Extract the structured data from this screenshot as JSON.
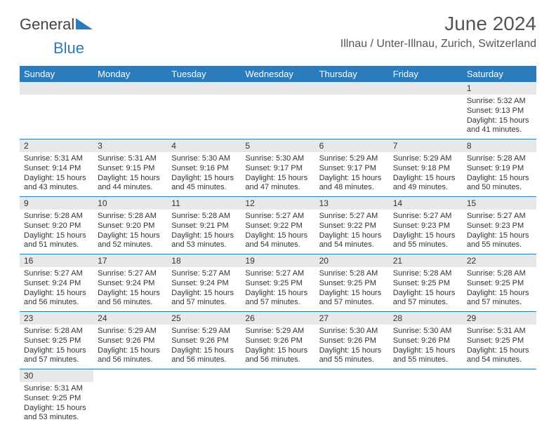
{
  "brand": {
    "general": "General",
    "blue": "Blue"
  },
  "header": {
    "title": "June 2024",
    "location": "Illnau / Unter-Illnau, Zurich, Switzerland"
  },
  "colors": {
    "header_bg": "#2b7bbd",
    "header_text": "#ffffff",
    "daynum_bg": "#e8e8e8",
    "rule": "#2b7bbd"
  },
  "days_of_week": [
    "Sunday",
    "Monday",
    "Tuesday",
    "Wednesday",
    "Thursday",
    "Friday",
    "Saturday"
  ],
  "weeks": [
    [
      null,
      null,
      null,
      null,
      null,
      null,
      {
        "n": "1",
        "sr": "Sunrise: 5:32 AM",
        "ss": "Sunset: 9:13 PM",
        "dl": "Daylight: 15 hours and 41 minutes."
      }
    ],
    [
      {
        "n": "2",
        "sr": "Sunrise: 5:31 AM",
        "ss": "Sunset: 9:14 PM",
        "dl": "Daylight: 15 hours and 43 minutes."
      },
      {
        "n": "3",
        "sr": "Sunrise: 5:31 AM",
        "ss": "Sunset: 9:15 PM",
        "dl": "Daylight: 15 hours and 44 minutes."
      },
      {
        "n": "4",
        "sr": "Sunrise: 5:30 AM",
        "ss": "Sunset: 9:16 PM",
        "dl": "Daylight: 15 hours and 45 minutes."
      },
      {
        "n": "5",
        "sr": "Sunrise: 5:30 AM",
        "ss": "Sunset: 9:17 PM",
        "dl": "Daylight: 15 hours and 47 minutes."
      },
      {
        "n": "6",
        "sr": "Sunrise: 5:29 AM",
        "ss": "Sunset: 9:17 PM",
        "dl": "Daylight: 15 hours and 48 minutes."
      },
      {
        "n": "7",
        "sr": "Sunrise: 5:29 AM",
        "ss": "Sunset: 9:18 PM",
        "dl": "Daylight: 15 hours and 49 minutes."
      },
      {
        "n": "8",
        "sr": "Sunrise: 5:28 AM",
        "ss": "Sunset: 9:19 PM",
        "dl": "Daylight: 15 hours and 50 minutes."
      }
    ],
    [
      {
        "n": "9",
        "sr": "Sunrise: 5:28 AM",
        "ss": "Sunset: 9:20 PM",
        "dl": "Daylight: 15 hours and 51 minutes."
      },
      {
        "n": "10",
        "sr": "Sunrise: 5:28 AM",
        "ss": "Sunset: 9:20 PM",
        "dl": "Daylight: 15 hours and 52 minutes."
      },
      {
        "n": "11",
        "sr": "Sunrise: 5:28 AM",
        "ss": "Sunset: 9:21 PM",
        "dl": "Daylight: 15 hours and 53 minutes."
      },
      {
        "n": "12",
        "sr": "Sunrise: 5:27 AM",
        "ss": "Sunset: 9:22 PM",
        "dl": "Daylight: 15 hours and 54 minutes."
      },
      {
        "n": "13",
        "sr": "Sunrise: 5:27 AM",
        "ss": "Sunset: 9:22 PM",
        "dl": "Daylight: 15 hours and 54 minutes."
      },
      {
        "n": "14",
        "sr": "Sunrise: 5:27 AM",
        "ss": "Sunset: 9:23 PM",
        "dl": "Daylight: 15 hours and 55 minutes."
      },
      {
        "n": "15",
        "sr": "Sunrise: 5:27 AM",
        "ss": "Sunset: 9:23 PM",
        "dl": "Daylight: 15 hours and 55 minutes."
      }
    ],
    [
      {
        "n": "16",
        "sr": "Sunrise: 5:27 AM",
        "ss": "Sunset: 9:24 PM",
        "dl": "Daylight: 15 hours and 56 minutes."
      },
      {
        "n": "17",
        "sr": "Sunrise: 5:27 AM",
        "ss": "Sunset: 9:24 PM",
        "dl": "Daylight: 15 hours and 56 minutes."
      },
      {
        "n": "18",
        "sr": "Sunrise: 5:27 AM",
        "ss": "Sunset: 9:24 PM",
        "dl": "Daylight: 15 hours and 57 minutes."
      },
      {
        "n": "19",
        "sr": "Sunrise: 5:27 AM",
        "ss": "Sunset: 9:25 PM",
        "dl": "Daylight: 15 hours and 57 minutes."
      },
      {
        "n": "20",
        "sr": "Sunrise: 5:28 AM",
        "ss": "Sunset: 9:25 PM",
        "dl": "Daylight: 15 hours and 57 minutes."
      },
      {
        "n": "21",
        "sr": "Sunrise: 5:28 AM",
        "ss": "Sunset: 9:25 PM",
        "dl": "Daylight: 15 hours and 57 minutes."
      },
      {
        "n": "22",
        "sr": "Sunrise: 5:28 AM",
        "ss": "Sunset: 9:25 PM",
        "dl": "Daylight: 15 hours and 57 minutes."
      }
    ],
    [
      {
        "n": "23",
        "sr": "Sunrise: 5:28 AM",
        "ss": "Sunset: 9:25 PM",
        "dl": "Daylight: 15 hours and 57 minutes."
      },
      {
        "n": "24",
        "sr": "Sunrise: 5:29 AM",
        "ss": "Sunset: 9:26 PM",
        "dl": "Daylight: 15 hours and 56 minutes."
      },
      {
        "n": "25",
        "sr": "Sunrise: 5:29 AM",
        "ss": "Sunset: 9:26 PM",
        "dl": "Daylight: 15 hours and 56 minutes."
      },
      {
        "n": "26",
        "sr": "Sunrise: 5:29 AM",
        "ss": "Sunset: 9:26 PM",
        "dl": "Daylight: 15 hours and 56 minutes."
      },
      {
        "n": "27",
        "sr": "Sunrise: 5:30 AM",
        "ss": "Sunset: 9:26 PM",
        "dl": "Daylight: 15 hours and 55 minutes."
      },
      {
        "n": "28",
        "sr": "Sunrise: 5:30 AM",
        "ss": "Sunset: 9:26 PM",
        "dl": "Daylight: 15 hours and 55 minutes."
      },
      {
        "n": "29",
        "sr": "Sunrise: 5:31 AM",
        "ss": "Sunset: 9:25 PM",
        "dl": "Daylight: 15 hours and 54 minutes."
      }
    ],
    [
      {
        "n": "30",
        "sr": "Sunrise: 5:31 AM",
        "ss": "Sunset: 9:25 PM",
        "dl": "Daylight: 15 hours and 53 minutes."
      },
      null,
      null,
      null,
      null,
      null,
      null
    ]
  ]
}
